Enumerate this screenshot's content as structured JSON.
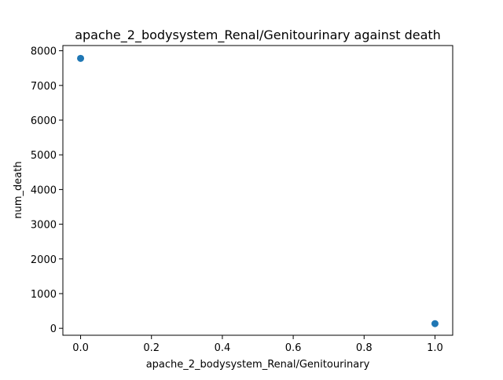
{
  "chart_data": {
    "type": "scatter",
    "title": "apache_2_bodysystem_Renal/Genitourinary against death",
    "xlabel": "apache_2_bodysystem_Renal/Genitourinary",
    "ylabel": "num_death",
    "xlim": [
      -0.05,
      1.05
    ],
    "ylim": [
      -200,
      8150
    ],
    "x_ticks": [
      0.0,
      0.2,
      0.4,
      0.6,
      0.8,
      1.0
    ],
    "x_tick_labels": [
      "0.0",
      "0.2",
      "0.4",
      "0.6",
      "0.8",
      "1.0"
    ],
    "y_ticks": [
      0,
      1000,
      2000,
      3000,
      4000,
      5000,
      6000,
      7000,
      8000
    ],
    "y_tick_labels": [
      "0",
      "1000",
      "2000",
      "3000",
      "4000",
      "5000",
      "6000",
      "7000",
      "8000"
    ],
    "grid": false,
    "point_color": "#1f77b4",
    "points": [
      {
        "x": 0.0,
        "y": 7780
      },
      {
        "x": 1.0,
        "y": 135
      }
    ]
  }
}
